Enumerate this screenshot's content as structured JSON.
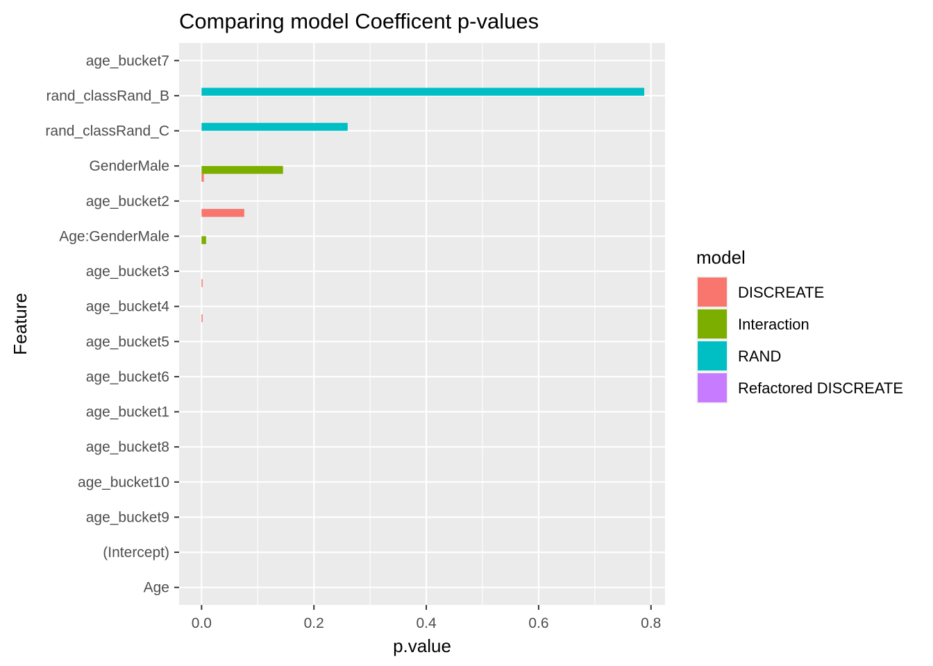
{
  "chart_data": {
    "type": "bar",
    "orientation": "horizontal",
    "title": "Comparing model Coefficent p-values",
    "xlabel": "p.value",
    "ylabel": "Feature",
    "xlim": [
      -0.04,
      0.825
    ],
    "xticks": [
      0.0,
      0.2,
      0.4,
      0.6,
      0.8
    ],
    "xtick_labels": [
      "0.0",
      "0.2",
      "0.4",
      "0.6",
      "0.8"
    ],
    "grid": true,
    "legend_title": "model",
    "legend_position": "right",
    "categories": [
      "age_bucket7",
      "rand_classRand_B",
      "rand_classRand_C",
      "GenderMale",
      "age_bucket2",
      "Age:GenderMale",
      "age_bucket3",
      "age_bucket4",
      "age_bucket5",
      "age_bucket6",
      "age_bucket1",
      "age_bucket8",
      "age_bucket10",
      "age_bucket9",
      "(Intercept)",
      "Age"
    ],
    "series": [
      {
        "name": "DISCREATE",
        "color": "#F8766D",
        "values": [
          0,
          0,
          0,
          0.004,
          0.076,
          0,
          0.0015,
          0.0015,
          0,
          0,
          0,
          0,
          0,
          0,
          0,
          0
        ]
      },
      {
        "name": "Interaction",
        "color": "#7CAE00",
        "values": [
          0,
          0,
          0,
          0.145,
          0,
          0.008,
          0,
          0,
          0,
          0,
          0,
          0,
          0,
          0,
          0,
          0
        ]
      },
      {
        "name": "RAND",
        "color": "#00BFC4",
        "values": [
          0,
          0.788,
          0.26,
          0,
          0,
          0,
          0,
          0,
          0,
          0,
          0,
          0,
          0,
          0,
          0,
          0
        ]
      },
      {
        "name": "Refactored DISCREATE",
        "color": "#C77CFF",
        "values": [
          0,
          0,
          0,
          0,
          0,
          0,
          0,
          0,
          0,
          0,
          0,
          0,
          0,
          0,
          0,
          0
        ]
      }
    ]
  }
}
